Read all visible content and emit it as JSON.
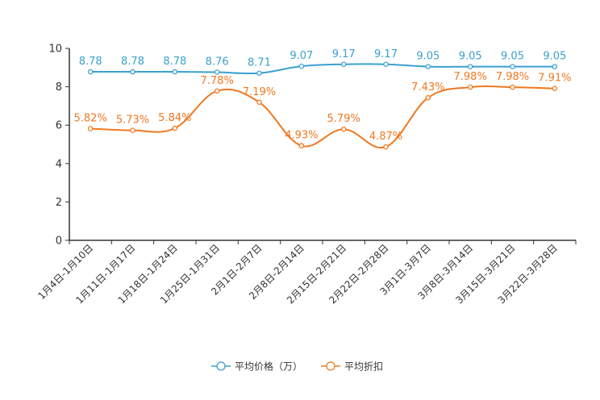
{
  "chart_data": {
    "type": "line",
    "title": "",
    "xlabel": "",
    "ylabel": "",
    "ylim": [
      0,
      10
    ],
    "yticks": [
      0,
      2,
      4,
      6,
      8,
      10
    ],
    "categories": [
      "1月4日-1月10日",
      "1月11日-1月17日",
      "1月18日-1月24日",
      "1月25日-1月31日",
      "2月1日-2月7日",
      "2月8日-2月14日",
      "2月15日-2月21日",
      "2月22日-2月28日",
      "3月1日-3月7日",
      "3月8日-3月14日",
      "3月15日-3月21日",
      "3月22日-3月28日"
    ],
    "series": [
      {
        "name": "平均价格（万）",
        "color": "#3aa0d0",
        "values": [
          8.78,
          8.78,
          8.78,
          8.76,
          8.71,
          9.07,
          9.17,
          9.17,
          9.05,
          9.05,
          9.05,
          9.05
        ],
        "labels": [
          "8.78",
          "8.78",
          "8.78",
          "8.76",
          "8.71",
          "9.07",
          "9.17",
          "9.17",
          "9.05",
          "9.05",
          "9.05",
          "9.05"
        ]
      },
      {
        "name": "平均折扣",
        "color": "#f07820",
        "values": [
          5.82,
          5.73,
          5.84,
          7.78,
          7.19,
          4.93,
          5.79,
          4.87,
          7.43,
          7.98,
          7.98,
          7.91
        ],
        "labels": [
          "5.82%",
          "5.73%",
          "5.84%",
          "7.78%",
          "7.19%",
          "4.93%",
          "5.79%",
          "4.87%",
          "7.43%",
          "7.98%",
          "7.98%",
          "7.91%"
        ]
      }
    ],
    "legend": "bottom-center"
  }
}
